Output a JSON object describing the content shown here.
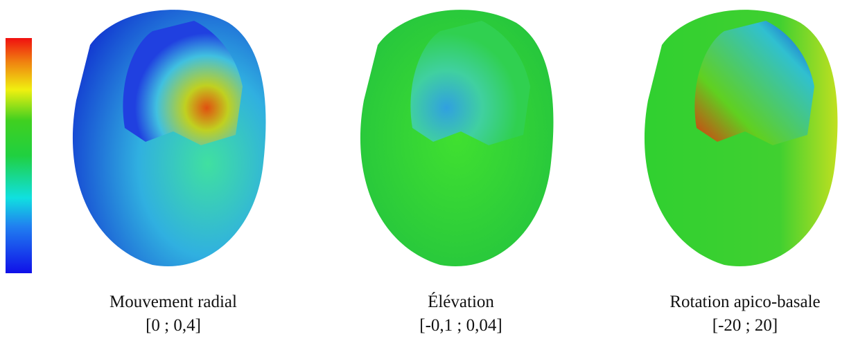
{
  "panels": [
    {
      "title": "Mouvement radial",
      "range": "[0 ; 0,4]"
    },
    {
      "title": "Élévation",
      "range": "[-0,1 ; 0,04]"
    },
    {
      "title": "Rotation apico-basale",
      "range": "[-20 ; 20]"
    }
  ]
}
